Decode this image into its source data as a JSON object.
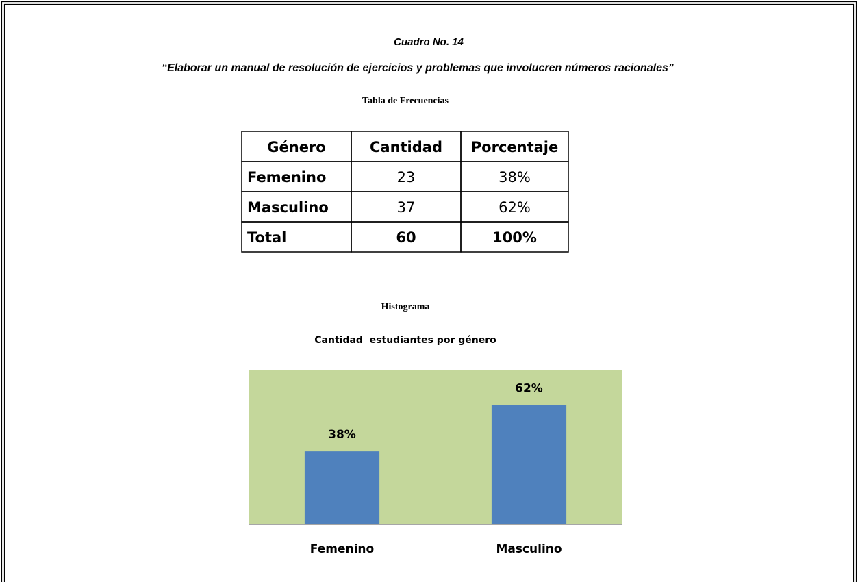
{
  "caption": "Cuadro No. 14",
  "subtitle": "“Elaborar un manual de resolución de ejercicios y problemas que involucren números racionales”",
  "table": {
    "title": "Tabla de Frecuencias",
    "header": [
      "Género",
      "Cantidad",
      "Porcentaje"
    ],
    "rows": [
      [
        "Femenino",
        23,
        "38%"
      ],
      [
        "Masculino",
        37,
        "62%"
      ],
      [
        "Total",
        60,
        "100%"
      ]
    ]
  },
  "chart_data": {
    "type": "bar",
    "title": "Histograma",
    "subtitle": "Cantidad  estudiantes por género",
    "categories": [
      "Femenino",
      "Masculino"
    ],
    "values": [
      38,
      62
    ],
    "value_labels": [
      "38%",
      "62%"
    ],
    "color": "#4f81bd",
    "background": "#c4d79b",
    "ylim": [
      0,
      80
    ]
  }
}
